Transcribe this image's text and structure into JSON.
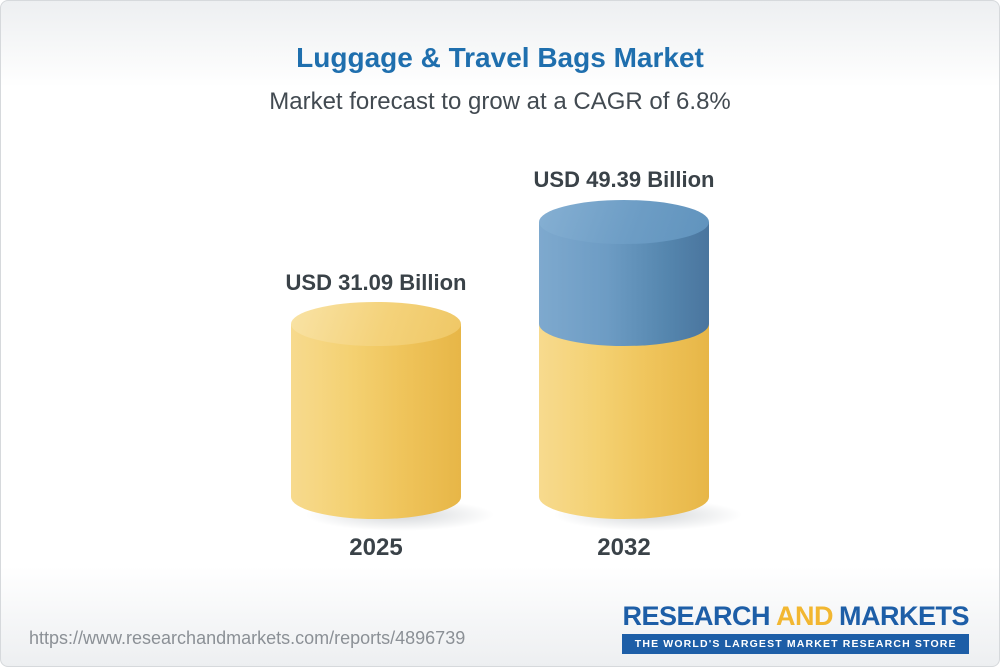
{
  "chart_data": {
    "type": "bar",
    "style": "3d-cylinder",
    "title": "Luggage & Travel Bags Market",
    "subtitle": "Market forecast to grow at a CAGR of 6.8%",
    "cagr": "6.8%",
    "unit": "USD Billion",
    "categories": [
      "2025",
      "2032"
    ],
    "values": [
      31.09,
      49.39
    ],
    "value_labels": [
      "USD 31.09 Billion",
      "USD 49.39 Billion"
    ],
    "gridlines": false,
    "axes": "none",
    "legend": "none",
    "colors": {
      "title_blue": "#1f6fae",
      "text_dark": "#3a4248",
      "bar_yellow": "#f2cd68",
      "bar_blue": "#6697bf"
    },
    "stacking_note_2032": "yellow base equals 2025 value, blue top segment is growth to 2032"
  },
  "footer": {
    "url": "https://www.researchandmarkets.com/reports/4896739",
    "logo": {
      "word_research": "RESEARCH",
      "word_and": "AND",
      "word_markets": "MARKETS",
      "tagline": "THE WORLD'S LARGEST MARKET RESEARCH STORE"
    }
  }
}
